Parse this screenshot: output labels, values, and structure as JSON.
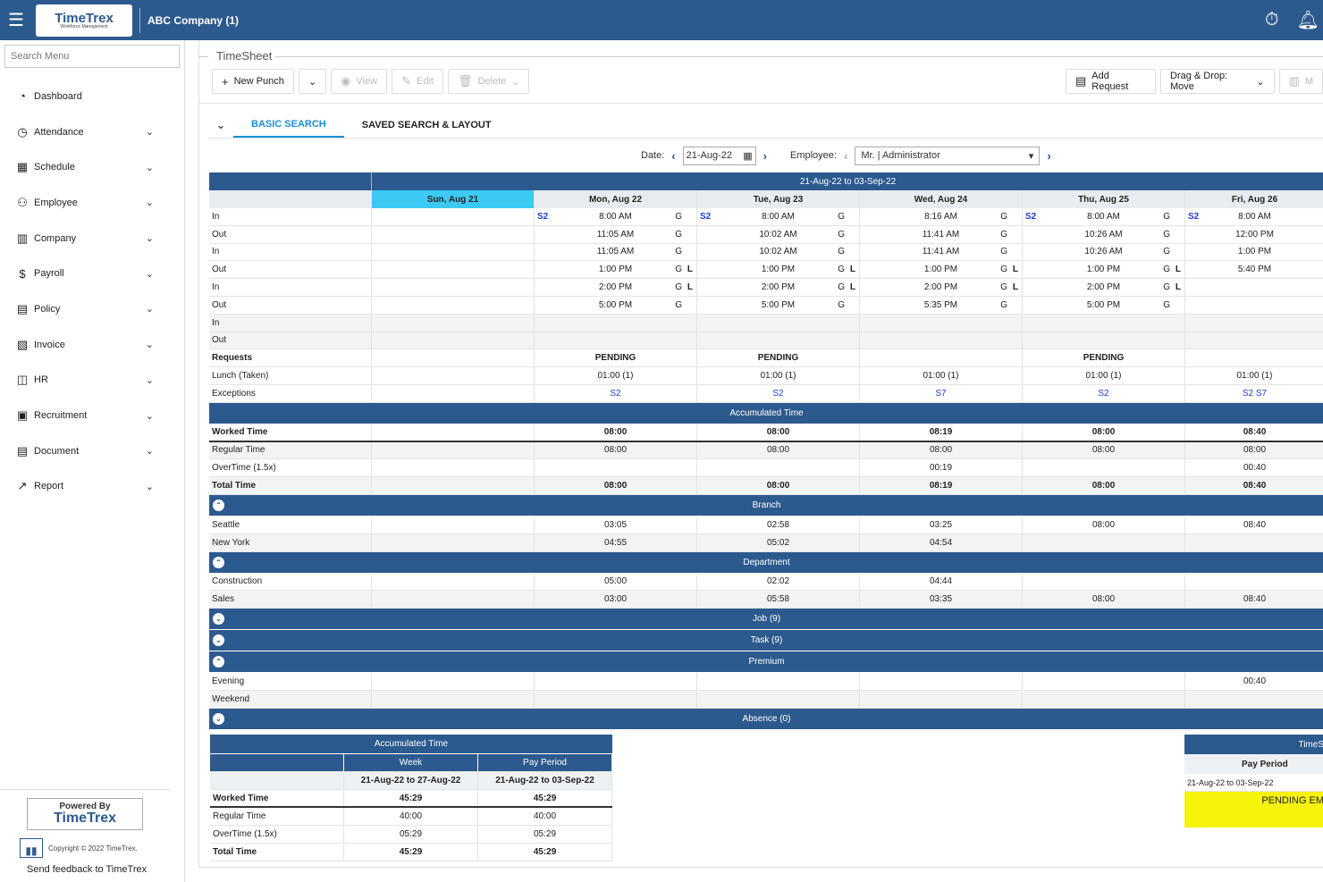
{
  "header": {
    "company": "ABC Company (1)",
    "logo_text": "TimeTrex",
    "logo_sub": "Workforce Management"
  },
  "sidebar": {
    "search_placeholder": "Search Menu",
    "items": [
      {
        "label": "Dashboard",
        "icon": "dashboard-icon",
        "glyph": "◔",
        "chev": false
      },
      {
        "label": "Attendance",
        "icon": "clock-icon",
        "glyph": "◷",
        "chev": true
      },
      {
        "label": "Schedule",
        "icon": "calendar-icon",
        "glyph": "▦",
        "chev": true
      },
      {
        "label": "Employee",
        "icon": "people-icon",
        "glyph": "⚇",
        "chev": true
      },
      {
        "label": "Company",
        "icon": "building-icon",
        "glyph": "▥",
        "chev": true
      },
      {
        "label": "Payroll",
        "icon": "dollar-icon",
        "glyph": "$",
        "chev": true
      },
      {
        "label": "Policy",
        "icon": "policy-icon",
        "glyph": "▤",
        "chev": true
      },
      {
        "label": "Invoice",
        "icon": "invoice-icon",
        "glyph": "▧",
        "chev": true
      },
      {
        "label": "HR",
        "icon": "briefcase-icon",
        "glyph": "◫",
        "chev": true
      },
      {
        "label": "Recruitment",
        "icon": "recruitment-icon",
        "glyph": "▣",
        "chev": true
      },
      {
        "label": "Document",
        "icon": "document-icon",
        "glyph": "▤",
        "chev": true
      },
      {
        "label": "Report",
        "icon": "chart-line-icon",
        "glyph": "↗",
        "chev": true
      }
    ],
    "powered_by": "Powered By",
    "powered_logo": "TimeTrex",
    "copyright": "Copyright © 2022 TimeTrex.",
    "feedback": "Send feedback to TimeTrex"
  },
  "page": {
    "title": "TimeSheet"
  },
  "toolbar": {
    "new_punch": "New Punch",
    "view": "View",
    "edit": "Edit",
    "delete": "Delete",
    "add_request": "Add Request",
    "drag_drop": "Drag & Drop: Move",
    "more": "M"
  },
  "tabs": {
    "basic": "BASIC SEARCH",
    "saved": "SAVED SEARCH & LAYOUT"
  },
  "filter": {
    "date_label": "Date:",
    "date_value": "21-Aug-22",
    "employee_label": "Employee:",
    "employee_value": "Mr. | Administrator"
  },
  "grid": {
    "period": "21-Aug-22 to 03-Sep-22",
    "days": [
      "Sun, Aug 21",
      "Mon, Aug 22",
      "Tue, Aug 23",
      "Wed, Aug 24",
      "Thu, Aug 25",
      "Fri, Aug 26"
    ],
    "punch_rows": [
      {
        "label": "In",
        "cells": [
          null,
          {
            "t": "8:00 AM",
            "s2": "S2",
            "f": "G"
          },
          {
            "t": "8:00 AM",
            "s2": "S2",
            "f": "G"
          },
          {
            "t": "8:16 AM",
            "f": "G"
          },
          {
            "t": "8:00 AM",
            "s2": "S2",
            "f": "G"
          },
          {
            "t": "8:00 AM",
            "s2": "S2"
          }
        ]
      },
      {
        "label": "Out",
        "cells": [
          null,
          {
            "t": "11:05 AM",
            "f": "G"
          },
          {
            "t": "10:02 AM",
            "f": "G"
          },
          {
            "t": "11:41 AM",
            "f": "G"
          },
          {
            "t": "10:26 AM",
            "f": "G"
          },
          {
            "t": "12:00 PM"
          }
        ]
      },
      {
        "label": "In",
        "cells": [
          null,
          {
            "t": "11:05 AM",
            "f": "G"
          },
          {
            "t": "10:02 AM",
            "f": "G"
          },
          {
            "t": "11:41 AM",
            "f": "G"
          },
          {
            "t": "10:26 AM",
            "f": "G"
          },
          {
            "t": "1:00 PM"
          }
        ]
      },
      {
        "label": "Out",
        "cells": [
          null,
          {
            "t": "1:00 PM",
            "f": "G",
            "l": "L"
          },
          {
            "t": "1:00 PM",
            "f": "G",
            "l": "L"
          },
          {
            "t": "1:00 PM",
            "f": "G",
            "l": "L"
          },
          {
            "t": "1:00 PM",
            "f": "G",
            "l": "L"
          },
          {
            "t": "5:40 PM"
          }
        ]
      },
      {
        "label": "In",
        "cells": [
          null,
          {
            "t": "2:00 PM",
            "f": "G",
            "l": "L"
          },
          {
            "t": "2:00 PM",
            "f": "G",
            "l": "L"
          },
          {
            "t": "2:00 PM",
            "f": "G",
            "l": "L"
          },
          {
            "t": "2:00 PM",
            "f": "G",
            "l": "L"
          },
          null
        ]
      },
      {
        "label": "Out",
        "cells": [
          null,
          {
            "t": "5:00 PM",
            "f": "G"
          },
          {
            "t": "5:00 PM",
            "f": "G"
          },
          {
            "t": "5:35 PM",
            "f": "G"
          },
          {
            "t": "5:00 PM",
            "f": "G"
          },
          null
        ]
      },
      {
        "label": "In",
        "cells": [
          null,
          null,
          null,
          null,
          null,
          null
        ]
      },
      {
        "label": "Out",
        "cells": [
          null,
          null,
          null,
          null,
          null,
          null
        ]
      }
    ],
    "requests": {
      "label": "Requests",
      "cells": [
        "",
        "PENDING",
        "PENDING",
        "",
        "PENDING",
        ""
      ]
    },
    "lunch": {
      "label": "Lunch (Taken)",
      "cells": [
        "",
        "01:00 (1)",
        "01:00 (1)",
        "01:00 (1)",
        "01:00 (1)",
        "01:00 (1)"
      ]
    },
    "exceptions": {
      "label": "Exceptions",
      "cells": [
        "",
        "S2",
        "S2",
        "S7",
        "S2",
        "S2  S7"
      ]
    },
    "accumulated_title": "Accumulated Time",
    "accumulated": [
      {
        "label": "Worked Time",
        "bold": true,
        "cells": [
          "",
          "08:00",
          "08:00",
          "08:19",
          "08:00",
          "08:40"
        ]
      },
      {
        "label": "Regular Time",
        "cells": [
          "",
          "08:00",
          "08:00",
          "08:00",
          "08:00",
          "08:00"
        ]
      },
      {
        "label": "OverTime (1.5x)",
        "cells": [
          "",
          "",
          "",
          "00:19",
          "",
          "00:40"
        ]
      },
      {
        "label": "Total Time",
        "bold": true,
        "cells": [
          "",
          "08:00",
          "08:00",
          "08:19",
          "08:00",
          "08:40"
        ]
      }
    ],
    "branch_title": "Branch",
    "branch": [
      {
        "label": "Seattle",
        "cells": [
          "",
          "03:05",
          "02:58",
          "03:25",
          "08:00",
          "08:40"
        ]
      },
      {
        "label": "New York",
        "cells": [
          "",
          "04:55",
          "05:02",
          "04:54",
          "",
          ""
        ]
      }
    ],
    "department_title": "Department",
    "department": [
      {
        "label": "Construction",
        "cells": [
          "",
          "05:00",
          "02:02",
          "04:44",
          "",
          ""
        ]
      },
      {
        "label": "Sales",
        "cells": [
          "",
          "03:00",
          "05:58",
          "03:35",
          "08:00",
          "08:40"
        ]
      }
    ],
    "job_title": "Job (9)",
    "task_title": "Task (9)",
    "premium_title": "Premium",
    "premium": [
      {
        "label": "Evening",
        "cells": [
          "",
          "",
          "",
          "",
          "",
          "00:40"
        ]
      },
      {
        "label": "Weekend",
        "cells": [
          "",
          "",
          "",
          "",
          "",
          ""
        ]
      }
    ],
    "absence_title": "Absence (0)"
  },
  "summary": {
    "title": "Accumulated Time",
    "col_week": "Week",
    "col_pay": "Pay Period",
    "range_week": "21-Aug-22 to 27-Aug-22",
    "range_pay": "21-Aug-22 to 03-Sep-22",
    "rows": [
      {
        "label": "Worked Time",
        "week": "45:29",
        "pay": "45:29",
        "bold": true
      },
      {
        "label": "Regular Time",
        "week": "40:00",
        "pay": "40:00"
      },
      {
        "label": "OverTime (1.5x)",
        "week": "05:29",
        "pay": "05:29"
      },
      {
        "label": "Total Time",
        "week": "45:29",
        "pay": "45:29",
        "bold": true
      }
    ]
  },
  "verification": {
    "title": "TimeS",
    "col": "Pay Period",
    "range": "21-Aug-22 to 03-Sep-22",
    "status": "PENDING EM"
  }
}
